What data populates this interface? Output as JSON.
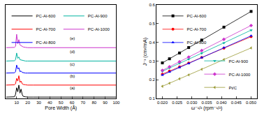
{
  "chart_data": [
    {
      "type": "line",
      "x_label": "Pore Width (Å)",
      "x": [
        0.5,
        3,
        6,
        8,
        9,
        10,
        11,
        12,
        13,
        14,
        15,
        16,
        18,
        20,
        25,
        30,
        40,
        50,
        60,
        70,
        80,
        90,
        100
      ],
      "xlim": [
        0,
        100
      ],
      "xticks": [
        10,
        20,
        30,
        40,
        50,
        60,
        70,
        80,
        90,
        100
      ],
      "ylim": [
        0,
        7
      ],
      "tick_labels": "x",
      "grid": false,
      "series": [
        {
          "name": "PC-Al-600",
          "color": "#000000",
          "label": "(a)",
          "legend": "top-left",
          "values": [
            0.1,
            0.1,
            0.1,
            0.12,
            0.3,
            0.8,
            0.5,
            1.0,
            0.4,
            0.7,
            0.3,
            0.15,
            0.12,
            0.1,
            0.1,
            0.1,
            0.1,
            0.1,
            0.1,
            0.1,
            0.1,
            0.1,
            0.1
          ]
        },
        {
          "name": "PC-Al-700",
          "color": "#ff0000",
          "label": "(b)",
          "legend": "top-left",
          "values": [
            1.0,
            1.0,
            1.0,
            1.02,
            1.1,
            1.5,
            1.3,
            1.7,
            1.2,
            1.3,
            1.1,
            1.05,
            1.02,
            1.0,
            1.0,
            1.0,
            1.0,
            1.0,
            1.0,
            1.0,
            1.0,
            1.0,
            1.0
          ]
        },
        {
          "name": "PC-Al-800",
          "color": "#0000ff",
          "label": "(c)",
          "legend": "top-left",
          "values": [
            1.9,
            1.9,
            1.9,
            1.92,
            2.0,
            2.5,
            2.2,
            2.3,
            2.0,
            2.05,
            1.95,
            1.92,
            1.9,
            1.9,
            1.9,
            1.9,
            1.9,
            1.9,
            1.9,
            1.9,
            1.9,
            1.9,
            1.9
          ]
        },
        {
          "name": "PC-Al-900",
          "color": "#00b3a0",
          "label": "(d)",
          "legend": "top-right",
          "values": [
            2.8,
            2.8,
            2.8,
            2.82,
            2.9,
            3.4,
            3.0,
            3.1,
            2.9,
            2.88,
            2.84,
            2.82,
            2.8,
            2.8,
            2.8,
            2.8,
            2.8,
            2.8,
            2.8,
            2.8,
            2.8,
            2.8,
            2.8
          ]
        },
        {
          "name": "PC-Al-1000",
          "color": "#cc33cc",
          "label": "(e)",
          "legend": "top-right",
          "values": [
            3.8,
            3.8,
            3.8,
            3.82,
            3.9,
            4.8,
            4.1,
            4.4,
            4.0,
            3.95,
            3.9,
            3.85,
            3.82,
            3.8,
            3.8,
            3.8,
            3.8,
            3.8,
            3.8,
            3.8,
            3.8,
            3.8,
            3.8
          ]
        }
      ]
    },
    {
      "type": "scatter",
      "x_label": "ω⁻¹/² (rpm⁻¹/²)",
      "y_label": "J⁻¹ (cm²/mA)",
      "x": [
        0.02,
        0.0224,
        0.0258,
        0.0289,
        0.0333,
        0.0408,
        0.05
      ],
      "xlim": [
        0.018,
        0.052
      ],
      "xticks": [
        {
          "value": 0.02,
          "label": "0.020"
        },
        {
          "value": 0.025,
          "label": "0.025"
        },
        {
          "value": 0.03,
          "label": "0.030"
        },
        {
          "value": 0.035,
          "label": "0.035"
        },
        {
          "value": 0.04,
          "label": "0.040"
        },
        {
          "value": 0.045,
          "label": "0.045"
        },
        {
          "value": 0.05,
          "label": "0.050"
        }
      ],
      "ylim": [
        0.1,
        0.6
      ],
      "yticks": [
        0.1,
        0.2,
        0.3,
        0.4,
        0.5,
        0.6
      ],
      "grid": false,
      "series": [
        {
          "name": "PC-Al-600",
          "color": "#000000",
          "marker": "square",
          "legend": "top-left",
          "values": [
            0.29,
            0.312,
            0.343,
            0.372,
            0.412,
            0.481,
            0.565
          ]
        },
        {
          "name": "PC-Al-700",
          "color": "#ff0000",
          "marker": "circle",
          "legend": "top-left",
          "values": [
            0.23,
            0.246,
            0.269,
            0.289,
            0.319,
            0.369,
            0.43
          ]
        },
        {
          "name": "PC-Al-800",
          "color": "#0000ff",
          "marker": "triangle-up",
          "legend": "top-left",
          "values": [
            0.225,
            0.242,
            0.266,
            0.287,
            0.318,
            0.371,
            0.435
          ]
        },
        {
          "name": "PC-Al-900",
          "color": "#00b3a0",
          "marker": "triangle-down",
          "legend": "bottom-right",
          "values": [
            0.245,
            0.263,
            0.288,
            0.31,
            0.342,
            0.397,
            0.465
          ]
        },
        {
          "name": "PC-Al-1000",
          "color": "#cc33cc",
          "marker": "diamond",
          "legend": "bottom-right",
          "values": [
            0.25,
            0.269,
            0.296,
            0.321,
            0.356,
            0.416,
            0.49
          ]
        },
        {
          "name": "Pt/C",
          "color": "#999933",
          "marker": "triangle-left",
          "legend": "bottom-right",
          "values": [
            0.165,
            0.181,
            0.205,
            0.226,
            0.256,
            0.308,
            0.37
          ]
        }
      ]
    }
  ]
}
